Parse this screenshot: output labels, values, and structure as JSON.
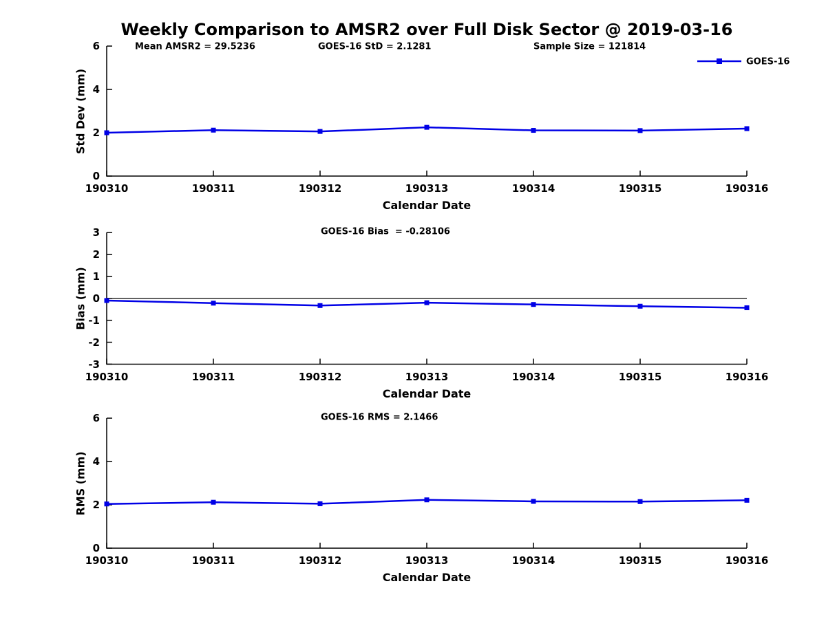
{
  "title": "Weekly Comparison to AMSR2 over Full Disk Sector @ 2019-03-16",
  "legend": {
    "label": "GOES-16",
    "color": "#0000E6"
  },
  "colors": {
    "line": "#0000E6",
    "axis": "#000000",
    "background": "#ffffff"
  },
  "chart_data": [
    {
      "id": "stddev",
      "type": "line",
      "categories": [
        "190310",
        "190311",
        "190312",
        "190313",
        "190314",
        "190315",
        "190316"
      ],
      "series": [
        {
          "name": "GOES-16",
          "values": [
            2.0,
            2.12,
            2.06,
            2.25,
            2.11,
            2.1,
            2.19
          ],
          "color": "#0000E6",
          "marker": "square"
        }
      ],
      "xlabel": "Calendar Date",
      "ylabel": "Std Dev (mm)",
      "ylim": [
        0,
        6
      ],
      "yticks": [
        0,
        2,
        4,
        6
      ],
      "grid": false,
      "legend_position": "top-right",
      "annotations": [
        "Mean AMSR2 = 29.5236",
        "GOES-16 StD = 2.1281",
        "Sample Size = 121814"
      ]
    },
    {
      "id": "bias",
      "type": "line",
      "categories": [
        "190310",
        "190311",
        "190312",
        "190313",
        "190314",
        "190315",
        "190316"
      ],
      "series": [
        {
          "name": "GOES-16",
          "values": [
            -0.1,
            -0.22,
            -0.33,
            -0.2,
            -0.28,
            -0.36,
            -0.43
          ],
          "color": "#0000E6",
          "marker": "square"
        }
      ],
      "xlabel": "Calendar Date",
      "ylabel": "Bias (mm)",
      "ylim": [
        -3,
        3
      ],
      "yticks": [
        -3,
        -2,
        -1,
        0,
        1,
        2,
        3
      ],
      "grid": false,
      "zero_line": true,
      "annotations": [
        "GOES-16 Bias  = -0.28106"
      ]
    },
    {
      "id": "rms",
      "type": "line",
      "categories": [
        "190310",
        "190311",
        "190312",
        "190313",
        "190314",
        "190315",
        "190316"
      ],
      "series": [
        {
          "name": "GOES-16",
          "values": [
            2.04,
            2.12,
            2.05,
            2.23,
            2.16,
            2.15,
            2.21
          ],
          "color": "#0000E6",
          "marker": "square"
        }
      ],
      "xlabel": "Calendar Date",
      "ylabel": "RMS (mm)",
      "ylim": [
        0,
        6
      ],
      "yticks": [
        0,
        2,
        4,
        6
      ],
      "grid": false,
      "annotations": [
        "GOES-16 RMS = 2.1466"
      ]
    }
  ]
}
